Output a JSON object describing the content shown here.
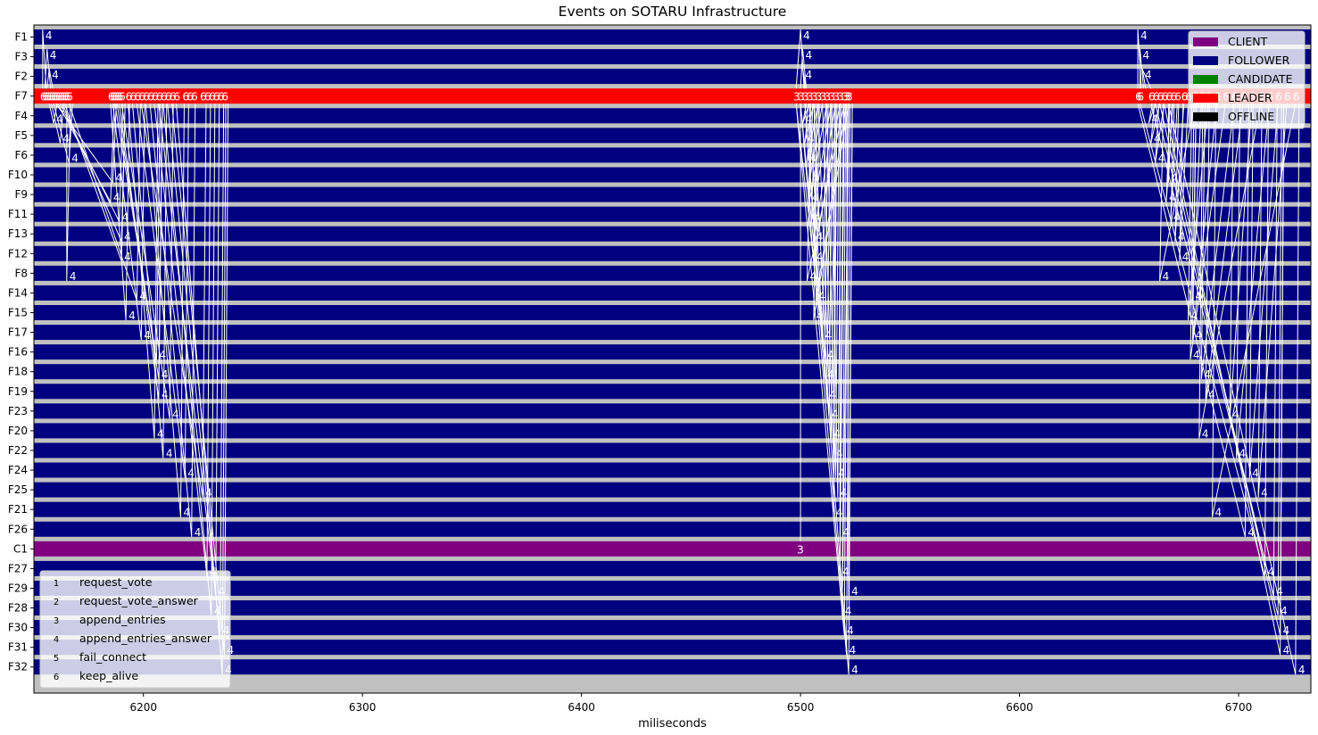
{
  "chart_data": {
    "type": "timeline",
    "title": "Events on SOTARU Infrastructure",
    "xlabel": "miliseconds",
    "ylabel": "",
    "xlim": [
      6150,
      6733
    ],
    "xticks": [
      6200,
      6300,
      6400,
      6500,
      6600,
      6700
    ],
    "lanes": [
      {
        "name": "F1",
        "state": "FOLLOWER"
      },
      {
        "name": "F3",
        "state": "FOLLOWER"
      },
      {
        "name": "F2",
        "state": "FOLLOWER"
      },
      {
        "name": "F7",
        "state": "LEADER"
      },
      {
        "name": "F4",
        "state": "FOLLOWER"
      },
      {
        "name": "F5",
        "state": "FOLLOWER"
      },
      {
        "name": "F6",
        "state": "FOLLOWER"
      },
      {
        "name": "F10",
        "state": "FOLLOWER"
      },
      {
        "name": "F9",
        "state": "FOLLOWER"
      },
      {
        "name": "F11",
        "state": "FOLLOWER"
      },
      {
        "name": "F13",
        "state": "FOLLOWER"
      },
      {
        "name": "F12",
        "state": "FOLLOWER"
      },
      {
        "name": "F8",
        "state": "FOLLOWER"
      },
      {
        "name": "F14",
        "state": "FOLLOWER"
      },
      {
        "name": "F15",
        "state": "FOLLOWER"
      },
      {
        "name": "F17",
        "state": "FOLLOWER"
      },
      {
        "name": "F16",
        "state": "FOLLOWER"
      },
      {
        "name": "F18",
        "state": "FOLLOWER"
      },
      {
        "name": "F19",
        "state": "FOLLOWER"
      },
      {
        "name": "F23",
        "state": "FOLLOWER"
      },
      {
        "name": "F20",
        "state": "FOLLOWER"
      },
      {
        "name": "F22",
        "state": "FOLLOWER"
      },
      {
        "name": "F24",
        "state": "FOLLOWER"
      },
      {
        "name": "F25",
        "state": "FOLLOWER"
      },
      {
        "name": "F21",
        "state": "FOLLOWER"
      },
      {
        "name": "F26",
        "state": "FOLLOWER"
      },
      {
        "name": "C1",
        "state": "CLIENT"
      },
      {
        "name": "F27",
        "state": "FOLLOWER"
      },
      {
        "name": "F29",
        "state": "FOLLOWER"
      },
      {
        "name": "F28",
        "state": "FOLLOWER"
      },
      {
        "name": "F30",
        "state": "FOLLOWER"
      },
      {
        "name": "F31",
        "state": "FOLLOWER"
      },
      {
        "name": "F32",
        "state": "FOLLOWER"
      }
    ],
    "state_legend": [
      {
        "label": "CLIENT",
        "color": "#800080"
      },
      {
        "label": "FOLLOWER",
        "color": "#000080"
      },
      {
        "label": "CANDIDATE",
        "color": "#008000"
      },
      {
        "label": "LEADER",
        "color": "#ff0000"
      },
      {
        "label": "OFFLINE",
        "color": "#000000"
      }
    ],
    "message_legend": [
      {
        "code": "1",
        "label": "request_vote"
      },
      {
        "code": "2",
        "label": "request_vote_answer"
      },
      {
        "code": "3",
        "label": "append_entries"
      },
      {
        "code": "4",
        "label": "append_entries_answer"
      },
      {
        "code": "5",
        "label": "fail_connect"
      },
      {
        "code": "6",
        "label": "keep_alive"
      }
    ],
    "bursts": [
      {
        "leader": "F7",
        "out_code": "6",
        "in_code": "4",
        "sends": [
          6154,
          6155,
          6156,
          6157,
          6158,
          6159,
          6160,
          6161,
          6162,
          6163,
          6164,
          6165,
          6166,
          6185,
          6186,
          6187,
          6188,
          6189,
          6190,
          6193,
          6195,
          6197,
          6199,
          6201,
          6203,
          6205,
          6207,
          6209,
          6211,
          6213,
          6215,
          6219,
          6221,
          6223,
          6227,
          6229,
          6231,
          6233,
          6235,
          6237
        ],
        "replies": [
          {
            "from": "F1",
            "x": 6154
          },
          {
            "from": "F3",
            "x": 6156
          },
          {
            "from": "F2",
            "x": 6157
          },
          {
            "from": "F4",
            "x": 6159
          },
          {
            "from": "F5",
            "x": 6162
          },
          {
            "from": "F6",
            "x": 6166
          },
          {
            "from": "F10",
            "x": 6186
          },
          {
            "from": "F9",
            "x": 6185
          },
          {
            "from": "F11",
            "x": 6189
          },
          {
            "from": "F13",
            "x": 6190
          },
          {
            "from": "F12",
            "x": 6190
          },
          {
            "from": "F8",
            "x": 6165
          },
          {
            "from": "F14",
            "x": 6197
          },
          {
            "from": "F15",
            "x": 6192
          },
          {
            "from": "F17",
            "x": 6199
          },
          {
            "from": "F16",
            "x": 6206
          },
          {
            "from": "F18",
            "x": 6207
          },
          {
            "from": "F19",
            "x": 6207
          },
          {
            "from": "F23",
            "x": 6212
          },
          {
            "from": "F20",
            "x": 6205
          },
          {
            "from": "F22",
            "x": 6209
          },
          {
            "from": "F24",
            "x": 6219
          },
          {
            "from": "F25",
            "x": 6227
          },
          {
            "from": "F21",
            "x": 6217
          },
          {
            "from": "F26",
            "x": 6222
          },
          {
            "from": "F27",
            "x": 6229
          },
          {
            "from": "F29",
            "x": 6233
          },
          {
            "from": "F28",
            "x": 6231
          },
          {
            "from": "F30",
            "x": 6235
          },
          {
            "from": "F31",
            "x": 6237
          },
          {
            "from": "F32",
            "x": 6236
          }
        ]
      },
      {
        "leader": "F7",
        "out_code": "3",
        "in_code": "4",
        "sends": [
          6498,
          6500,
          6502,
          6504,
          6506,
          6508,
          6510,
          6512,
          6514,
          6516,
          6518,
          6520,
          6521,
          6522
        ],
        "replies": [
          {
            "from": "F1",
            "x": 6500
          },
          {
            "from": "F3",
            "x": 6501
          },
          {
            "from": "F2",
            "x": 6501
          },
          {
            "from": "F4",
            "x": 6501
          },
          {
            "from": "F5",
            "x": 6502
          },
          {
            "from": "F6",
            "x": 6503
          },
          {
            "from": "F10",
            "x": 6504
          },
          {
            "from": "F9",
            "x": 6504
          },
          {
            "from": "F11",
            "x": 6505
          },
          {
            "from": "F13",
            "x": 6506
          },
          {
            "from": "F12",
            "x": 6506
          },
          {
            "from": "F8",
            "x": 6503
          },
          {
            "from": "F14",
            "x": 6507
          },
          {
            "from": "F15",
            "x": 6506
          },
          {
            "from": "F17",
            "x": 6510
          },
          {
            "from": "F16",
            "x": 6511
          },
          {
            "from": "F18",
            "x": 6511
          },
          {
            "from": "F19",
            "x": 6512
          },
          {
            "from": "F23",
            "x": 6513
          },
          {
            "from": "F20",
            "x": 6514
          },
          {
            "from": "F22",
            "x": 6515
          },
          {
            "from": "F24",
            "x": 6516
          },
          {
            "from": "F25",
            "x": 6517
          },
          {
            "from": "F21",
            "x": 6515
          },
          {
            "from": "F26",
            "x": 6518
          },
          {
            "from": "F27",
            "x": 6518
          },
          {
            "from": "F29",
            "x": 6522
          },
          {
            "from": "F28",
            "x": 6519
          },
          {
            "from": "F30",
            "x": 6520
          },
          {
            "from": "F31",
            "x": 6521
          },
          {
            "from": "F32",
            "x": 6522
          }
        ],
        "client": {
          "lane": "C1",
          "code": "3",
          "x": 6500
        }
      },
      {
        "leader": "F7",
        "out_code": "6",
        "in_code": "4",
        "sends": [
          6654,
          6655,
          6660,
          6662,
          6664,
          6666,
          6668,
          6670,
          6672,
          6675,
          6677,
          6680,
          6683,
          6686,
          6690,
          6694,
          6698,
          6702,
          6706,
          6710,
          6714,
          6718,
          6722,
          6726
        ],
        "replies": [
          {
            "from": "F1",
            "x": 6654
          },
          {
            "from": "F3",
            "x": 6655
          },
          {
            "from": "F2",
            "x": 6656
          },
          {
            "from": "F4",
            "x": 6659
          },
          {
            "from": "F5",
            "x": 6660
          },
          {
            "from": "F6",
            "x": 6662
          },
          {
            "from": "F10",
            "x": 6668
          },
          {
            "from": "F9",
            "x": 6667
          },
          {
            "from": "F11",
            "x": 6669
          },
          {
            "from": "F13",
            "x": 6671
          },
          {
            "from": "F12",
            "x": 6673
          },
          {
            "from": "F8",
            "x": 6664
          },
          {
            "from": "F14",
            "x": 6679
          },
          {
            "from": "F15",
            "x": 6677
          },
          {
            "from": "F17",
            "x": 6679
          },
          {
            "from": "F16",
            "x": 6678
          },
          {
            "from": "F18",
            "x": 6683
          },
          {
            "from": "F19",
            "x": 6685
          },
          {
            "from": "F23",
            "x": 6696
          },
          {
            "from": "F20",
            "x": 6682
          },
          {
            "from": "F22",
            "x": 6699
          },
          {
            "from": "F24",
            "x": 6705
          },
          {
            "from": "F25",
            "x": 6709
          },
          {
            "from": "F21",
            "x": 6688
          },
          {
            "from": "F26",
            "x": 6703
          },
          {
            "from": "F27",
            "x": 6712
          },
          {
            "from": "F29",
            "x": 6716
          },
          {
            "from": "F28",
            "x": 6718
          },
          {
            "from": "F30",
            "x": 6719
          },
          {
            "from": "F31",
            "x": 6719
          },
          {
            "from": "F32",
            "x": 6726
          }
        ]
      }
    ],
    "grid": false,
    "state_legend_placement": "top-right",
    "message_legend_placement": "bottom-left"
  }
}
